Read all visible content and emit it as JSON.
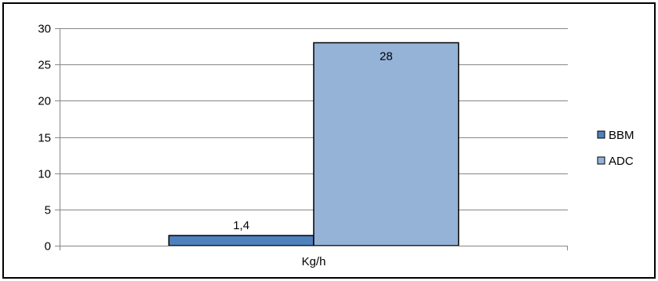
{
  "chart_data": {
    "type": "bar",
    "categories": [
      "Kg/h"
    ],
    "series": [
      {
        "name": "BBM",
        "values": [
          1.4
        ],
        "color": "#4F81BD"
      },
      {
        "name": "ADC",
        "values": [
          28
        ],
        "color": "#95B3D7"
      }
    ],
    "data_labels": [
      "1,4",
      "28"
    ],
    "ylim": [
      0,
      30
    ],
    "yticks": [
      0,
      5,
      10,
      15,
      20,
      25,
      30
    ],
    "grid": true,
    "legend_position": "right",
    "title": "",
    "xlabel": "",
    "ylabel": ""
  }
}
